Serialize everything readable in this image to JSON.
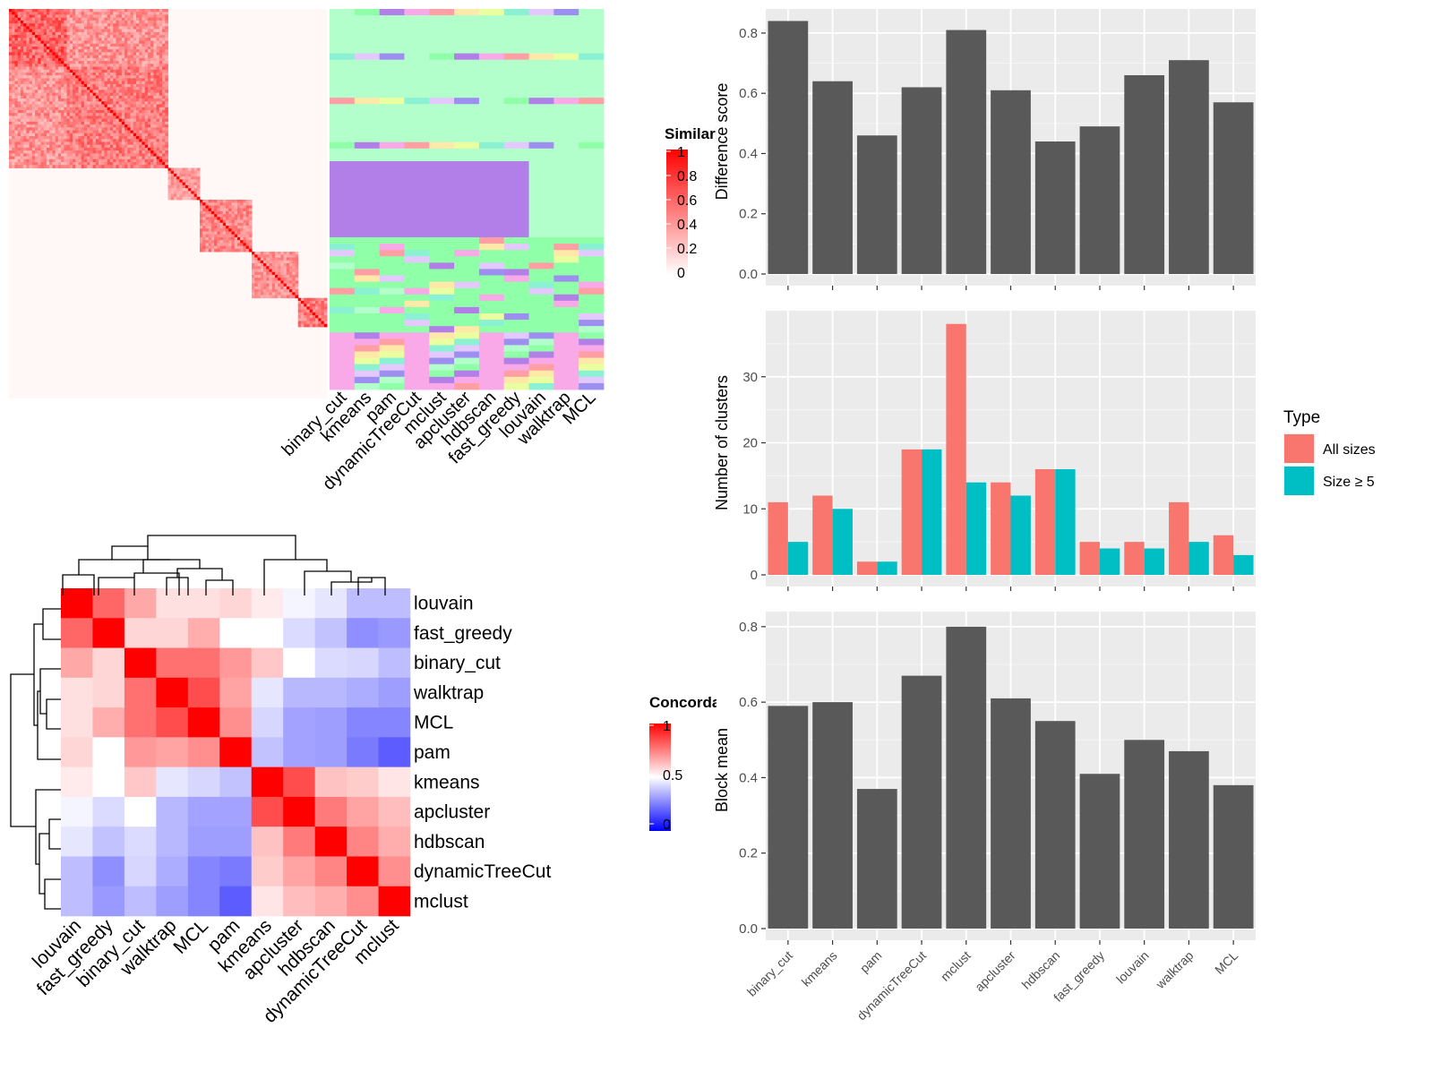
{
  "chart_data": [
    {
      "type": "heatmap",
      "subtype": "sample-similarity-heatmap-with-cluster-annotation",
      "legend_title": "Similarity",
      "legend_ticks": [
        "1",
        "0.8",
        "0.6",
        "0.4",
        "0.2",
        "0"
      ],
      "legend_range": [
        0,
        1
      ],
      "colors": {
        "low": "#ffffff",
        "high": "#ff0000"
      },
      "annotation_columns": [
        "binary_cut",
        "kmeans",
        "pam",
        "dynamicTreeCut",
        "mclust",
        "apcluster",
        "hdbscan",
        "fast_greedy",
        "louvain",
        "walktrap",
        "MCL"
      ],
      "annotation_palette": [
        "#b3ffcc",
        "#8fffa8",
        "#b27fe8",
        "#f9a8e8",
        "#ff9fa3",
        "#ffe9a8",
        "#eaffa0",
        "#8af2d2",
        "#e3c9ff",
        "#9c8ff0"
      ]
    },
    {
      "type": "heatmap",
      "subtype": "method-concordance-heatmap",
      "legend_title": "Concordance",
      "legend_ticks": [
        "1",
        "0.5",
        "0"
      ],
      "legend_range": [
        0,
        1
      ],
      "colors": {
        "low": "#0000ff",
        "mid": "#ffffff",
        "high": "#ff0000"
      },
      "labels": [
        "louvain",
        "fast_greedy",
        "binary_cut",
        "walktrap",
        "MCL",
        "pam",
        "kmeans",
        "apcluster",
        "hdbscan",
        "dynamicTreeCut",
        "mclust"
      ],
      "matrix": [
        [
          1.0,
          0.8,
          0.67,
          0.56,
          0.56,
          0.58,
          0.54,
          0.48,
          0.45,
          0.37,
          0.37
        ],
        [
          0.8,
          1.0,
          0.58,
          0.58,
          0.66,
          0.5,
          0.5,
          0.43,
          0.38,
          0.28,
          0.3
        ],
        [
          0.67,
          0.58,
          1.0,
          0.78,
          0.78,
          0.7,
          0.61,
          0.5,
          0.43,
          0.42,
          0.37
        ],
        [
          0.56,
          0.58,
          0.78,
          1.0,
          0.85,
          0.68,
          0.45,
          0.36,
          0.36,
          0.34,
          0.31
        ],
        [
          0.56,
          0.66,
          0.78,
          0.85,
          1.0,
          0.72,
          0.42,
          0.32,
          0.31,
          0.26,
          0.26
        ],
        [
          0.58,
          0.5,
          0.7,
          0.68,
          0.72,
          1.0,
          0.38,
          0.32,
          0.31,
          0.24,
          0.18
        ],
        [
          0.54,
          0.5,
          0.61,
          0.45,
          0.42,
          0.38,
          1.0,
          0.85,
          0.62,
          0.6,
          0.55
        ],
        [
          0.48,
          0.43,
          0.5,
          0.36,
          0.32,
          0.32,
          0.85,
          1.0,
          0.76,
          0.68,
          0.63
        ],
        [
          0.45,
          0.38,
          0.43,
          0.36,
          0.31,
          0.31,
          0.62,
          0.76,
          1.0,
          0.74,
          0.66
        ],
        [
          0.37,
          0.28,
          0.42,
          0.34,
          0.26,
          0.24,
          0.6,
          0.68,
          0.74,
          1.0,
          0.72
        ],
        [
          0.37,
          0.3,
          0.37,
          0.31,
          0.26,
          0.18,
          0.55,
          0.63,
          0.66,
          0.72,
          1.0
        ]
      ]
    },
    {
      "type": "bar",
      "categories": [
        "binary_cut",
        "kmeans",
        "pam",
        "dynamicTreeCut",
        "mclust",
        "apcluster",
        "hdbscan",
        "fast_greedy",
        "louvain",
        "walktrap",
        "MCL"
      ],
      "values": [
        0.84,
        0.64,
        0.46,
        0.62,
        0.81,
        0.61,
        0.44,
        0.49,
        0.66,
        0.71,
        0.57
      ],
      "ylabel": "Difference score",
      "xlabel": "",
      "ylim": [
        0,
        0.88
      ],
      "yticks": [
        "0.0",
        "0.2",
        "0.4",
        "0.6",
        "0.8"
      ],
      "bar_color": "#595959",
      "panel_color": "#ebebeb"
    },
    {
      "type": "bar",
      "categories": [
        "binary_cut",
        "kmeans",
        "pam",
        "dynamicTreeCut",
        "mclust",
        "apcluster",
        "hdbscan",
        "fast_greedy",
        "louvain",
        "walktrap",
        "MCL"
      ],
      "series": [
        {
          "name": "All sizes",
          "values": [
            11,
            12,
            2,
            19,
            38,
            14,
            16,
            5,
            5,
            11,
            6
          ],
          "color": "#f8766d"
        },
        {
          "name": "Size ≥ 5",
          "values": [
            5,
            10,
            2,
            19,
            14,
            12,
            16,
            4,
            4,
            5,
            3
          ],
          "color": "#00bfc4"
        }
      ],
      "ylabel": "Number of clusters",
      "xlabel": "",
      "ylim": [
        0,
        40
      ],
      "yticks": [
        "0",
        "10",
        "20",
        "30"
      ],
      "legend_title": "Type",
      "legend_position": "right",
      "panel_color": "#ebebeb"
    },
    {
      "type": "bar",
      "categories": [
        "binary_cut",
        "kmeans",
        "pam",
        "dynamicTreeCut",
        "mclust",
        "apcluster",
        "hdbscan",
        "fast_greedy",
        "louvain",
        "walktrap",
        "MCL"
      ],
      "values": [
        0.59,
        0.6,
        0.37,
        0.67,
        0.8,
        0.61,
        0.55,
        0.41,
        0.5,
        0.47,
        0.38
      ],
      "ylabel": "Block mean",
      "xlabel": "",
      "ylim": [
        0,
        0.84
      ],
      "yticks": [
        "0.0",
        "0.2",
        "0.4",
        "0.6",
        "0.8"
      ],
      "bar_color": "#595959",
      "panel_color": "#ebebeb"
    }
  ]
}
